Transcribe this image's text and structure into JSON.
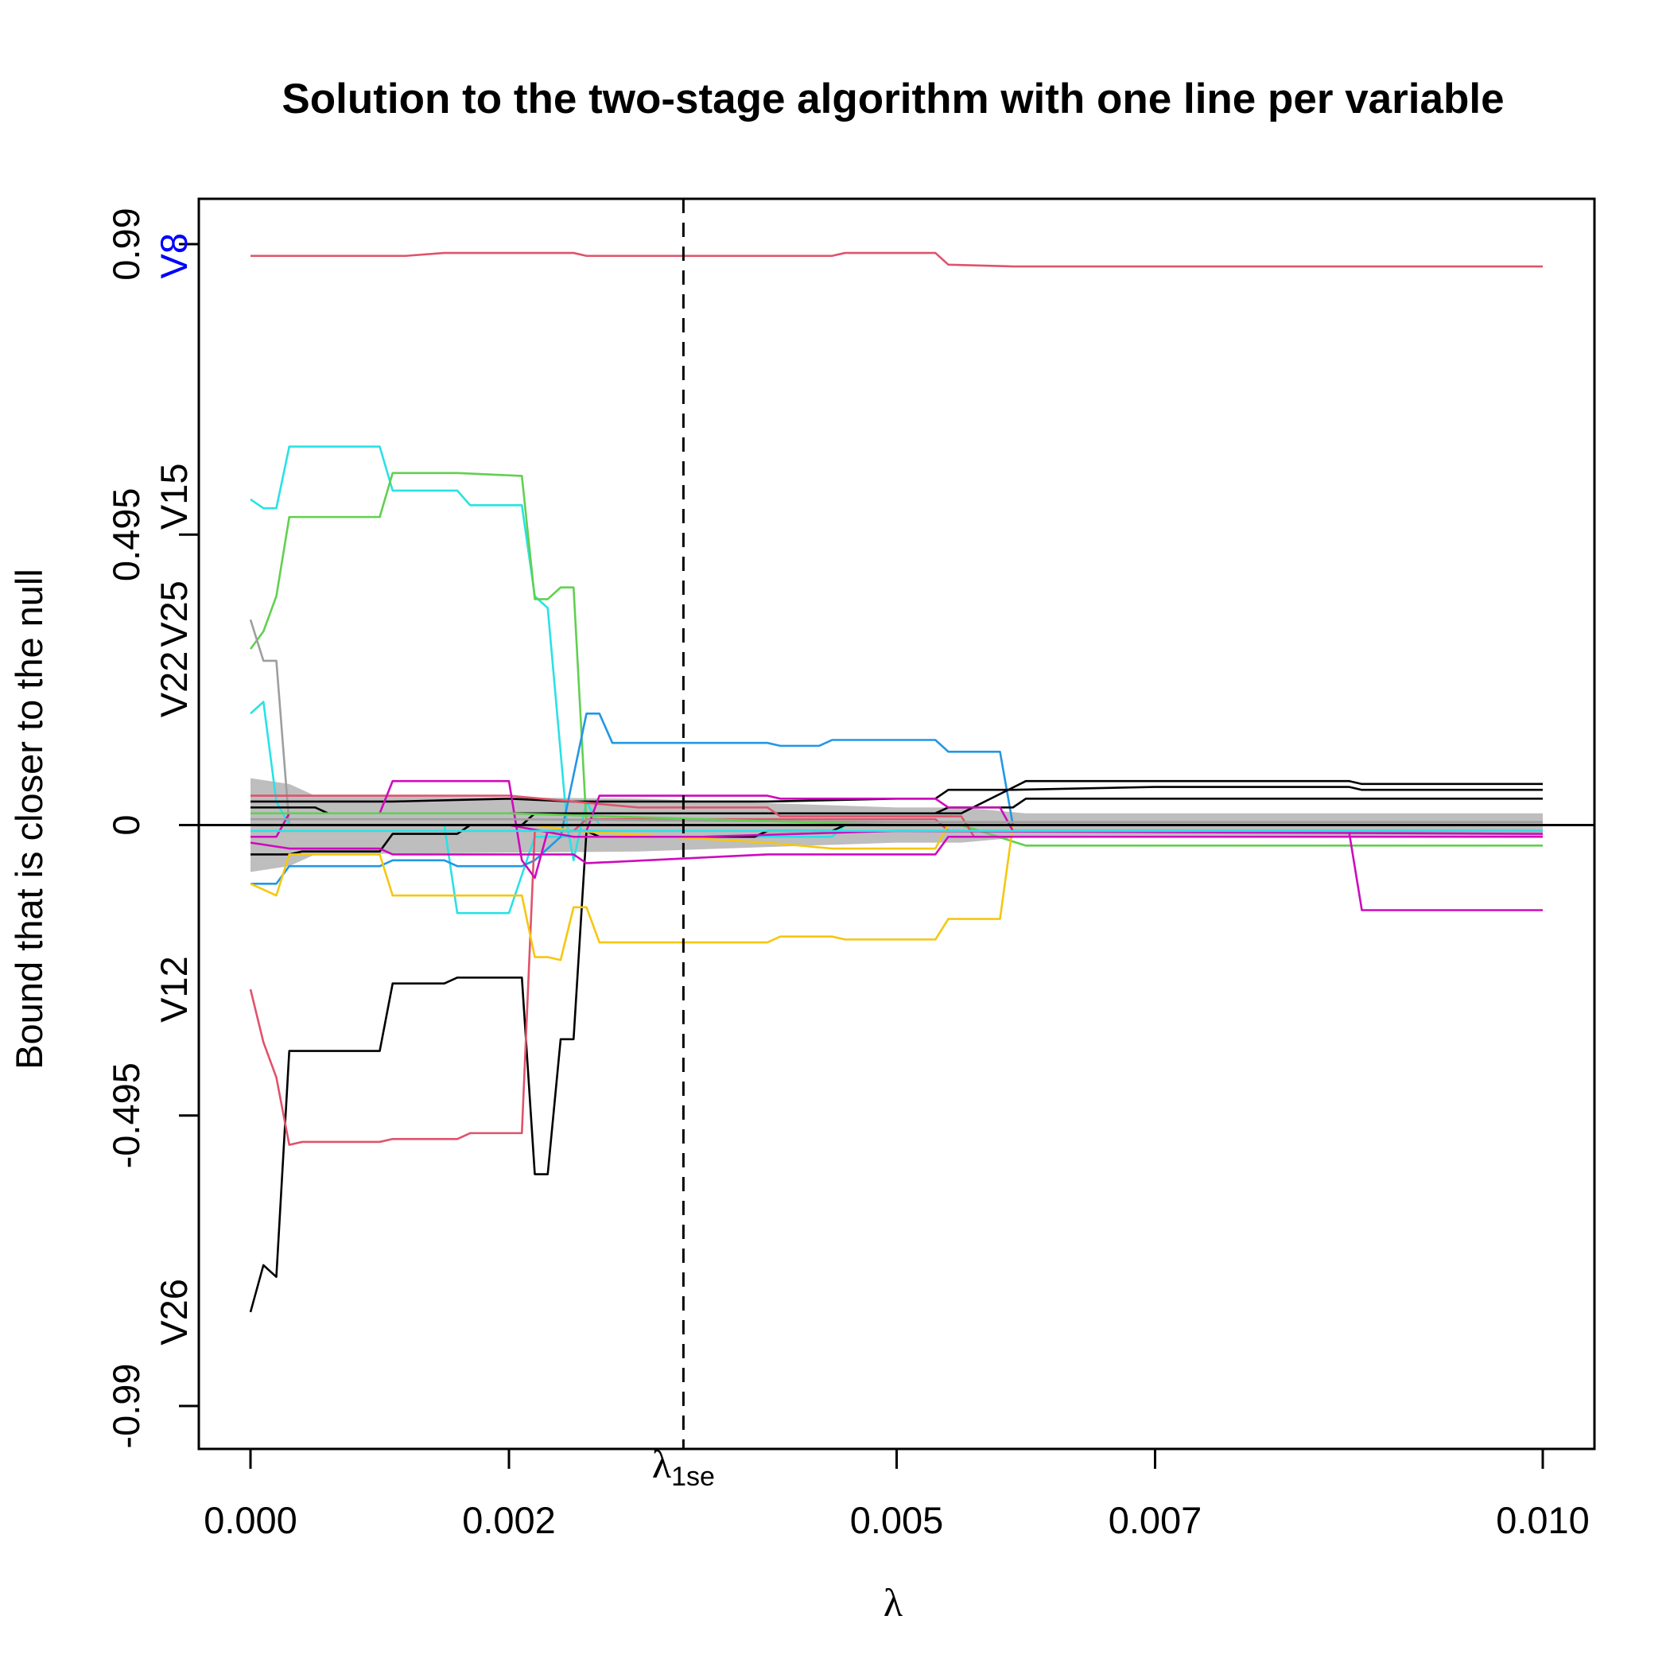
{
  "chart_data": {
    "type": "line",
    "title": "Solution to the two-stage algorithm with one line per variable",
    "xlabel": "λ",
    "ylabel": "Bound that is closer to the null",
    "xlim": [
      0,
      0.01
    ],
    "ylim": [
      -0.99,
      0.99
    ],
    "x_ticks": [
      "0.000",
      "0.002",
      "0.005",
      "0.007",
      "0.010"
    ],
    "x_tick_values": [
      0,
      0.002,
      0.005,
      0.007,
      0.01
    ],
    "y_ticks": [
      "-0.99",
      "-0.495",
      "0",
      "0.495",
      "0.99"
    ],
    "y_tick_values": [
      -0.99,
      -0.495,
      0,
      0.495,
      0.99
    ],
    "lambda_1se": 0.00335,
    "lambda_1se_label": "λ",
    "lambda_1se_subscript": "1se",
    "grid": false,
    "legend": "none",
    "band": {
      "color": "#BEBEBE",
      "upper": [
        [
          0,
          0.08
        ],
        [
          0.0003,
          0.07
        ],
        [
          0.0005,
          0.05
        ],
        [
          0.003,
          0.045
        ],
        [
          0.005,
          0.03
        ],
        [
          0.0055,
          0.03
        ],
        [
          0.006,
          0.02
        ],
        [
          0.01,
          0.02
        ]
      ],
      "lower": [
        [
          0,
          -0.08
        ],
        [
          0.0003,
          -0.07
        ],
        [
          0.0005,
          -0.05
        ],
        [
          0.003,
          -0.045
        ],
        [
          0.005,
          -0.03
        ],
        [
          0.0055,
          -0.03
        ],
        [
          0.006,
          -0.02
        ],
        [
          0.01,
          -0.02
        ]
      ]
    },
    "var_labels": [
      {
        "text": "V8",
        "y": 0.97,
        "color": "#0000FF"
      },
      {
        "text": "V15",
        "y": 0.56,
        "color": "#000000"
      },
      {
        "text": "V25",
        "y": 0.36,
        "color": "#000000"
      },
      {
        "text": "V22",
        "y": 0.24,
        "color": "#000000"
      },
      {
        "text": "V12",
        "y": -0.28,
        "color": "#000000"
      },
      {
        "text": "V26",
        "y": -0.83,
        "color": "#000000"
      }
    ],
    "series": [
      {
        "color": "#DF536B",
        "points": [
          [
            0,
            0.97
          ],
          [
            0.0003,
            0.97
          ],
          [
            0.0012,
            0.97
          ],
          [
            0.0015,
            0.975
          ],
          [
            0.0025,
            0.975
          ],
          [
            0.0026,
            0.97
          ],
          [
            0.0045,
            0.97
          ],
          [
            0.0046,
            0.975
          ],
          [
            0.0053,
            0.975
          ],
          [
            0.0054,
            0.955
          ],
          [
            0.0059,
            0.952
          ],
          [
            0.01,
            0.952
          ]
        ]
      },
      {
        "color": "#28E2E5",
        "points": [
          [
            0,
            0.555
          ],
          [
            0.0001,
            0.54
          ],
          [
            0.0002,
            0.54
          ],
          [
            0.0003,
            0.645
          ],
          [
            0.001,
            0.645
          ],
          [
            0.0011,
            0.57
          ],
          [
            0.0016,
            0.57
          ],
          [
            0.0017,
            0.545
          ],
          [
            0.0021,
            0.545
          ],
          [
            0.0022,
            0.39
          ],
          [
            0.0023,
            0.37
          ],
          [
            0.00245,
            0.0
          ],
          [
            0.0025,
            -0.06
          ],
          [
            0.0026,
            0.04
          ],
          [
            0.0027,
            0.0
          ],
          [
            0.0035,
            0.0
          ],
          [
            0.01,
            0.0
          ]
        ]
      },
      {
        "color": "#61D04F",
        "points": [
          [
            0,
            0.3
          ],
          [
            0.0001,
            0.33
          ],
          [
            0.0002,
            0.39
          ],
          [
            0.0003,
            0.525
          ],
          [
            0.001,
            0.525
          ],
          [
            0.0011,
            0.6
          ],
          [
            0.0016,
            0.6
          ],
          [
            0.0021,
            0.595
          ],
          [
            0.0022,
            0.385
          ],
          [
            0.0023,
            0.385
          ],
          [
            0.0024,
            0.405
          ],
          [
            0.0025,
            0.405
          ],
          [
            0.0026,
            0.0
          ],
          [
            0.0055,
            0.0
          ],
          [
            0.006,
            -0.035
          ],
          [
            0.01,
            -0.035
          ]
        ]
      },
      {
        "color": "#9E9E9E",
        "points": [
          [
            0,
            0.35
          ],
          [
            0.0001,
            0.28
          ],
          [
            0.0002,
            0.28
          ],
          [
            0.0003,
            0.0
          ],
          [
            0.0035,
            0.0
          ],
          [
            0.01,
            0.0
          ]
        ]
      },
      {
        "color": "#28E2E5",
        "points": [
          [
            0,
            0.19
          ],
          [
            0.0001,
            0.21
          ],
          [
            0.0002,
            0.04
          ],
          [
            0.0003,
            0.0
          ],
          [
            0.0015,
            0.0
          ],
          [
            0.0016,
            -0.15
          ],
          [
            0.002,
            -0.15
          ],
          [
            0.0022,
            -0.02
          ],
          [
            0.0035,
            -0.02
          ],
          [
            0.0045,
            -0.02
          ],
          [
            0.0046,
            0.0
          ],
          [
            0.01,
            0.0
          ]
        ]
      },
      {
        "color": "#2297E6",
        "points": [
          [
            0,
            -0.1
          ],
          [
            0.0002,
            -0.1
          ],
          [
            0.0003,
            -0.07
          ],
          [
            0.001,
            -0.07
          ],
          [
            0.0011,
            -0.06
          ],
          [
            0.0015,
            -0.06
          ],
          [
            0.0016,
            -0.07
          ],
          [
            0.0021,
            -0.07
          ],
          [
            0.0022,
            -0.06
          ],
          [
            0.0024,
            -0.02
          ],
          [
            0.0026,
            0.19
          ],
          [
            0.0027,
            0.19
          ],
          [
            0.0028,
            0.14
          ],
          [
            0.004,
            0.14
          ],
          [
            0.0041,
            0.135
          ],
          [
            0.0044,
            0.135
          ],
          [
            0.0045,
            0.145
          ],
          [
            0.0053,
            0.145
          ],
          [
            0.0054,
            0.125
          ],
          [
            0.0058,
            0.125
          ],
          [
            0.0059,
            0.0
          ],
          [
            0.01,
            0.0
          ]
        ]
      },
      {
        "color": "#000000",
        "points": [
          [
            0,
            0.04
          ],
          [
            0.001,
            0.04
          ],
          [
            0.0011,
            0.04
          ],
          [
            0.002,
            0.045
          ],
          [
            0.0025,
            0.04
          ],
          [
            0.004,
            0.04
          ],
          [
            0.005,
            0.045
          ],
          [
            0.0053,
            0.045
          ],
          [
            0.0054,
            0.06
          ],
          [
            0.0059,
            0.06
          ],
          [
            0.007,
            0.065
          ],
          [
            0.0085,
            0.065
          ],
          [
            0.0086,
            0.06
          ],
          [
            0.01,
            0.06
          ]
        ]
      },
      {
        "color": "#000000",
        "points": [
          [
            0,
            -0.05
          ],
          [
            0.0003,
            -0.05
          ],
          [
            0.0004,
            -0.045
          ],
          [
            0.001,
            -0.045
          ],
          [
            0.0011,
            -0.015
          ],
          [
            0.0016,
            -0.015
          ],
          [
            0.0017,
            0.0
          ],
          [
            0.0021,
            0.0
          ],
          [
            0.0022,
            0.02
          ],
          [
            0.0026,
            0.02
          ],
          [
            0.0045,
            0.02
          ],
          [
            0.0053,
            0.02
          ],
          [
            0.0054,
            0.03
          ],
          [
            0.0059,
            0.03
          ],
          [
            0.006,
            0.045
          ],
          [
            0.01,
            0.045
          ]
        ]
      },
      {
        "color": "#000000",
        "points": [
          [
            0,
            -0.83
          ],
          [
            0.0001,
            -0.75
          ],
          [
            0.0002,
            -0.77
          ],
          [
            0.0003,
            -0.385
          ],
          [
            0.001,
            -0.385
          ],
          [
            0.0011,
            -0.27
          ],
          [
            0.0015,
            -0.27
          ],
          [
            0.0016,
            -0.26
          ],
          [
            0.0021,
            -0.26
          ],
          [
            0.0022,
            -0.595
          ],
          [
            0.0023,
            -0.595
          ],
          [
            0.0024,
            -0.365
          ],
          [
            0.0025,
            -0.365
          ],
          [
            0.0026,
            -0.01
          ],
          [
            0.0027,
            -0.02
          ],
          [
            0.0039,
            -0.02
          ],
          [
            0.004,
            -0.01
          ],
          [
            0.0045,
            -0.01
          ],
          [
            0.0046,
            0.0
          ],
          [
            0.01,
            0.0
          ]
        ]
      },
      {
        "color": "#000000",
        "points": [
          [
            0,
            0.03
          ],
          [
            0.0005,
            0.03
          ],
          [
            0.0006,
            0.02
          ],
          [
            0.0025,
            0.02
          ],
          [
            0.0055,
            0.02
          ],
          [
            0.006,
            0.075
          ],
          [
            0.007,
            0.075
          ],
          [
            0.0085,
            0.075
          ],
          [
            0.0086,
            0.07
          ],
          [
            0.01,
            0.07
          ]
        ]
      },
      {
        "color": "#DF536B",
        "points": [
          [
            0,
            -0.28
          ],
          [
            0.0001,
            -0.37
          ],
          [
            0.0002,
            -0.43
          ],
          [
            0.0003,
            -0.545
          ],
          [
            0.0004,
            -0.54
          ],
          [
            0.001,
            -0.54
          ],
          [
            0.0011,
            -0.535
          ],
          [
            0.0016,
            -0.535
          ],
          [
            0.0017,
            -0.525
          ],
          [
            0.0021,
            -0.525
          ],
          [
            0.0022,
            -0.01
          ],
          [
            0.0025,
            -0.01
          ],
          [
            0.0026,
            0.01
          ],
          [
            0.0035,
            0.01
          ],
          [
            0.0045,
            0.01
          ],
          [
            0.0053,
            0.01
          ],
          [
            0.0054,
            -0.01
          ],
          [
            0.01,
            -0.01
          ]
        ]
      },
      {
        "color": "#DF536B",
        "points": [
          [
            0,
            0.05
          ],
          [
            0.0005,
            0.05
          ],
          [
            0.001,
            0.05
          ],
          [
            0.002,
            0.05
          ],
          [
            0.003,
            0.03
          ],
          [
            0.004,
            0.03
          ],
          [
            0.0041,
            0.015
          ],
          [
            0.0055,
            0.015
          ],
          [
            0.0056,
            -0.02
          ],
          [
            0.01,
            -0.02
          ]
        ]
      },
      {
        "color": "#F5C710",
        "points": [
          [
            0,
            -0.1
          ],
          [
            0.0001,
            -0.11
          ],
          [
            0.0002,
            -0.12
          ],
          [
            0.0003,
            -0.05
          ],
          [
            0.001,
            -0.05
          ],
          [
            0.0011,
            -0.12
          ],
          [
            0.0016,
            -0.12
          ],
          [
            0.0021,
            -0.12
          ],
          [
            0.0022,
            -0.225
          ],
          [
            0.0023,
            -0.225
          ],
          [
            0.0024,
            -0.23
          ],
          [
            0.0025,
            -0.14
          ],
          [
            0.0026,
            -0.14
          ],
          [
            0.0027,
            -0.2
          ],
          [
            0.004,
            -0.2
          ],
          [
            0.0041,
            -0.19
          ],
          [
            0.0045,
            -0.19
          ],
          [
            0.0046,
            -0.195
          ],
          [
            0.0053,
            -0.195
          ],
          [
            0.0054,
            -0.16
          ],
          [
            0.0058,
            -0.16
          ],
          [
            0.0059,
            0.0
          ],
          [
            0.01,
            0.0
          ]
        ]
      },
      {
        "color": "#F5C710",
        "points": [
          [
            0,
            0.0
          ],
          [
            0.0022,
            0.0
          ],
          [
            0.0025,
            -0.01
          ],
          [
            0.004,
            -0.03
          ],
          [
            0.0045,
            -0.04
          ],
          [
            0.0053,
            -0.04
          ],
          [
            0.0054,
            0.0
          ],
          [
            0.01,
            0.0
          ]
        ]
      },
      {
        "color": "#CD0BBC",
        "points": [
          [
            0,
            -0.02
          ],
          [
            0.0002,
            -0.02
          ],
          [
            0.0003,
            0.02
          ],
          [
            0.001,
            0.02
          ],
          [
            0.0011,
            0.075
          ],
          [
            0.002,
            0.075
          ],
          [
            0.0021,
            -0.06
          ],
          [
            0.0022,
            -0.09
          ],
          [
            0.0023,
            -0.01
          ],
          [
            0.0026,
            -0.01
          ],
          [
            0.0027,
            0.05
          ],
          [
            0.004,
            0.05
          ],
          [
            0.0041,
            0.045
          ],
          [
            0.0053,
            0.045
          ],
          [
            0.0054,
            0.03
          ],
          [
            0.0058,
            0.03
          ],
          [
            0.0059,
            -0.01
          ],
          [
            0.0085,
            -0.01
          ],
          [
            0.0086,
            -0.145
          ],
          [
            0.01,
            -0.145
          ]
        ]
      },
      {
        "color": "#CD0BBC",
        "points": [
          [
            0,
            -0.03
          ],
          [
            0.0003,
            -0.04
          ],
          [
            0.001,
            -0.04
          ],
          [
            0.0011,
            -0.05
          ],
          [
            0.002,
            -0.05
          ],
          [
            0.0025,
            -0.05
          ],
          [
            0.0026,
            -0.065
          ],
          [
            0.004,
            -0.05
          ],
          [
            0.0053,
            -0.05
          ],
          [
            0.0054,
            -0.02
          ],
          [
            0.01,
            -0.02
          ]
        ]
      },
      {
        "color": "#CD0BBC",
        "points": [
          [
            0,
            0.0
          ],
          [
            0.002,
            0.0
          ],
          [
            0.0025,
            -0.02
          ],
          [
            0.0035,
            -0.02
          ],
          [
            0.005,
            -0.01
          ],
          [
            0.01,
            -0.015
          ]
        ]
      },
      {
        "color": "#9E9E9E",
        "points": [
          [
            0,
            0.01
          ],
          [
            0.002,
            0.01
          ],
          [
            0.005,
            0.005
          ],
          [
            0.01,
            0.005
          ]
        ]
      },
      {
        "color": "#28E2E5",
        "points": [
          [
            0,
            -0.01
          ],
          [
            0.002,
            -0.01
          ],
          [
            0.004,
            -0.01
          ],
          [
            0.01,
            -0.01
          ]
        ]
      },
      {
        "color": "#61D04F",
        "points": [
          [
            0,
            0.02
          ],
          [
            0.002,
            0.02
          ],
          [
            0.005,
            0.0
          ],
          [
            0.01,
            0.0
          ]
        ]
      }
    ],
    "zero_line": true
  }
}
